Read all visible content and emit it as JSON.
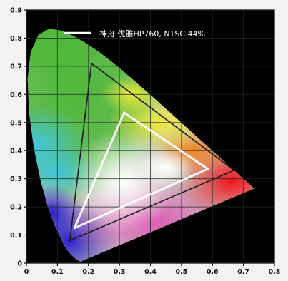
{
  "chart_data": {
    "type": "scatter",
    "title": "",
    "xlabel": "",
    "ylabel": "",
    "xlim": [
      0,
      0.8
    ],
    "ylim": [
      0,
      0.9
    ],
    "x_ticks": [
      "0",
      "0.1",
      "0.2",
      "0.3",
      "0.4",
      "0.5",
      "0.6",
      "0.7",
      "0.8"
    ],
    "y_ticks": [
      "0",
      "0.1",
      "0.2",
      "0.3",
      "0.4",
      "0.5",
      "0.6",
      "0.7",
      "0.8",
      "0.9"
    ],
    "grid": true,
    "legend": {
      "placement": "top",
      "entries": [
        {
          "label": "神舟 优雅HP760, NTSC 44%",
          "color": "#ffffff"
        }
      ]
    },
    "series": [
      {
        "name": "神舟 优雅HP760, NTSC 44%",
        "color": "#ffffff",
        "points": [
          {
            "x": 0.315,
            "y": 0.535
          },
          {
            "x": 0.585,
            "y": 0.335
          },
          {
            "x": 0.155,
            "y": 0.125
          }
        ]
      },
      {
        "name": "NTSC",
        "color": "#1a1a1a",
        "points": [
          {
            "x": 0.21,
            "y": 0.71
          },
          {
            "x": 0.67,
            "y": 0.33
          },
          {
            "x": 0.14,
            "y": 0.08
          }
        ]
      }
    ],
    "locus": {
      "points": [
        [
          0.1741,
          0.005
        ],
        [
          0.1644,
          0.0109
        ],
        [
          0.1566,
          0.0177
        ],
        [
          0.144,
          0.0297
        ],
        [
          0.1241,
          0.0578
        ],
        [
          0.0913,
          0.1327
        ],
        [
          0.0687,
          0.2007
        ],
        [
          0.0454,
          0.295
        ],
        [
          0.0235,
          0.4127
        ],
        [
          0.0082,
          0.5384
        ],
        [
          0.0039,
          0.6548
        ],
        [
          0.0139,
          0.7502
        ],
        [
          0.0389,
          0.812
        ],
        [
          0.0743,
          0.8338
        ],
        [
          0.1142,
          0.8262
        ],
        [
          0.1547,
          0.8059
        ],
        [
          0.1929,
          0.7816
        ],
        [
          0.2296,
          0.7543
        ],
        [
          0.2658,
          0.7243
        ],
        [
          0.3016,
          0.6923
        ],
        [
          0.3373,
          0.6589
        ],
        [
          0.3731,
          0.6245
        ],
        [
          0.4087,
          0.5896
        ],
        [
          0.4441,
          0.5547
        ],
        [
          0.4788,
          0.5202
        ],
        [
          0.5125,
          0.4866
        ],
        [
          0.5448,
          0.4544
        ],
        [
          0.5752,
          0.4242
        ],
        [
          0.6029,
          0.3965
        ],
        [
          0.627,
          0.3725
        ],
        [
          0.6482,
          0.3514
        ],
        [
          0.6658,
          0.334
        ],
        [
          0.6915,
          0.3083
        ],
        [
          0.7347,
          0.2653
        ]
      ]
    }
  }
}
